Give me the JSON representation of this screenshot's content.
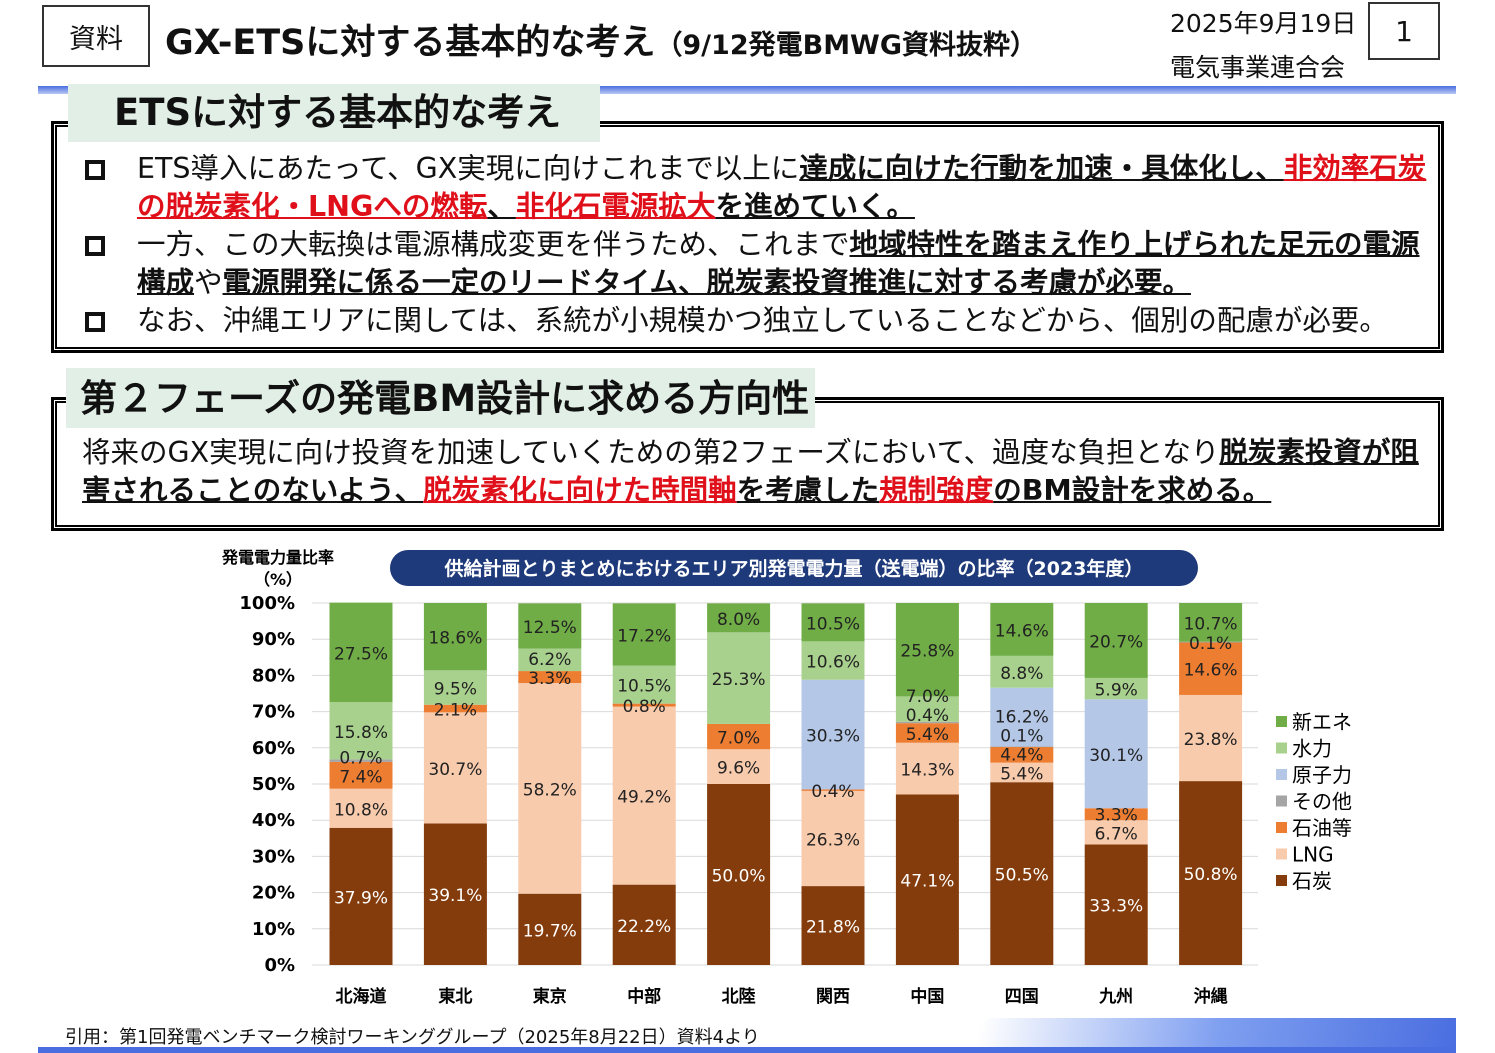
{
  "header": {
    "tag": "資料",
    "title": "GX-ETSに対する基本的な考え",
    "title_sub": "（9/12発電BMWG資料抜粋）",
    "date": "2025年9月19日",
    "org": "電気事業連合会",
    "page": "1"
  },
  "section1": {
    "title": "ETSに対する基本的な考え",
    "bullets": [
      [
        {
          "t": "ETS導入にあたって、GX実現に向けこれまで以上に",
          "s": ""
        },
        {
          "t": "達成に向けた行動を加速・具体化し、",
          "s": "b"
        },
        {
          "t": "非効率石炭の脱炭素化・LNGへの燃転",
          "s": "b r"
        },
        {
          "t": "、",
          "s": "b"
        },
        {
          "t": "非化石電源拡大",
          "s": "b r"
        },
        {
          "t": "を進めていく。",
          "s": "b"
        }
      ],
      [
        {
          "t": "一方、この大転換は電源構成変更を伴うため、これまで",
          "s": ""
        },
        {
          "t": "地域特性を踏まえ作り上げられた足元の電源構成",
          "s": "b"
        },
        {
          "t": "や",
          "s": ""
        },
        {
          "t": "電源開発に係る一定のリードタイム、脱炭素投資推進に対する考慮が必要。",
          "s": "b"
        }
      ],
      [
        {
          "t": "なお、沖縄エリアに関しては、系統が小規模かつ独立していることなどから、個別の配慮が必要。",
          "s": ""
        }
      ]
    ]
  },
  "section2": {
    "title": "第２フェーズの発電BM設計に求める方向性",
    "text": [
      {
        "t": "将来のGX実現に向け投資を加速していくための第2フェーズにおいて、過度な負担となり",
        "s": ""
      },
      {
        "t": "脱炭素投資が阻害されることのないよう、",
        "s": "b"
      },
      {
        "t": "脱炭素化に向けた時間軸",
        "s": "b r"
      },
      {
        "t": "を考慮した",
        "s": "b"
      },
      {
        "t": "規制強度",
        "s": "b r"
      },
      {
        "t": "のBM設計を求める。",
        "s": "b"
      }
    ]
  },
  "chart_data": {
    "type": "bar",
    "stacked": true,
    "title": "供給計画とりまとめにおけるエリア別発電電力量（送電端）の比率（2023年度）",
    "ylabel": "発電電力量比率（%）",
    "ylabel_line1": "発電電力量比率",
    "ylabel_line2": "（%）",
    "ylim": [
      0,
      100
    ],
    "yticks": [
      "0%",
      "10%",
      "20%",
      "30%",
      "40%",
      "50%",
      "60%",
      "70%",
      "80%",
      "90%",
      "100%"
    ],
    "grid": true,
    "legend_position": "right",
    "categories": [
      "北海道",
      "東北",
      "東京",
      "中部",
      "北陸",
      "関西",
      "中国",
      "四国",
      "九州",
      "沖縄"
    ],
    "series": [
      {
        "name": "石炭",
        "color": "#843c0c",
        "values": [
          37.9,
          39.1,
          19.7,
          22.2,
          50.0,
          21.8,
          47.1,
          50.5,
          33.3,
          50.8
        ]
      },
      {
        "name": "LNG",
        "color": "#f8cbad",
        "values": [
          10.8,
          30.7,
          58.2,
          49.2,
          9.6,
          26.3,
          14.3,
          5.4,
          6.7,
          23.8
        ]
      },
      {
        "name": "石油等",
        "color": "#ed7d31",
        "values": [
          7.4,
          2.1,
          3.3,
          0.8,
          7.0,
          0.4,
          5.4,
          4.4,
          3.3,
          14.6
        ]
      },
      {
        "name": "その他",
        "color": "#a5a5a5",
        "values": [
          0.7,
          0,
          0,
          0,
          0,
          0,
          0.4,
          0.1,
          0,
          0.1
        ]
      },
      {
        "name": "原子力",
        "color": "#b4c7e7",
        "values": [
          0,
          0,
          0,
          0,
          0,
          30.3,
          0,
          16.2,
          30.1,
          0
        ]
      },
      {
        "name": "水力",
        "color": "#a9d18e",
        "values": [
          15.8,
          9.5,
          6.2,
          10.5,
          25.3,
          10.6,
          7.0,
          8.8,
          5.9,
          0
        ]
      },
      {
        "name": "新エネ",
        "color": "#70ad47",
        "values": [
          27.5,
          18.6,
          12.5,
          17.2,
          8.0,
          10.5,
          25.8,
          14.6,
          20.7,
          10.7
        ]
      }
    ]
  },
  "footer": {
    "citation": "引用：第1回発電ベンチマーク検討ワーキンググループ（2025年8月22日）資料4より"
  }
}
